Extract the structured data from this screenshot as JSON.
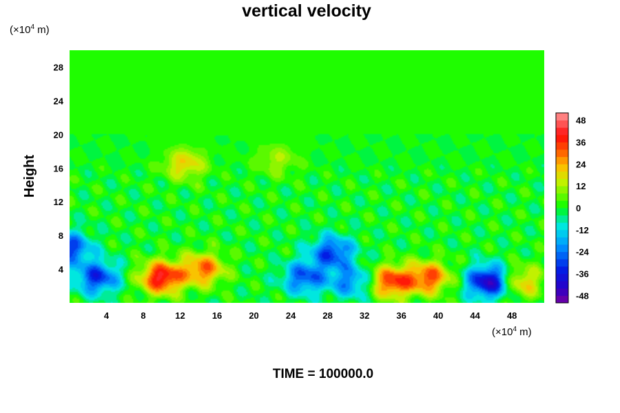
{
  "chart_data": {
    "type": "heatmap",
    "title": "vertical velocity",
    "ylabel": "Height",
    "xlabel": "",
    "x_unit": {
      "prefix": "(×10",
      "exp": "4",
      "suffix": " m)"
    },
    "y_unit": {
      "prefix": "(×10",
      "exp": "4",
      "suffix": " m)"
    },
    "xlim": [
      0,
      51.5
    ],
    "ylim": [
      0,
      30
    ],
    "x_ticks": [
      "4",
      "8",
      "12",
      "16",
      "20",
      "24",
      "28",
      "32",
      "36",
      "40",
      "44",
      "48"
    ],
    "y_ticks": [
      "4",
      "8",
      "12",
      "16",
      "20",
      "24",
      "28"
    ],
    "colorbar": {
      "range": [
        -52,
        52
      ],
      "ticks": [
        "48",
        "36",
        "24",
        "12",
        "0",
        "-12",
        "-24",
        "-36",
        "-48"
      ],
      "levels": 26
    },
    "features": [
      {
        "x": 3,
        "y": 3,
        "value": -32,
        "note": "downdraft"
      },
      {
        "x": 10,
        "y": 3,
        "value": 42,
        "note": "updraft"
      },
      {
        "x": 14.5,
        "y": 4,
        "value": 30,
        "note": "updraft"
      },
      {
        "x": 25.5,
        "y": 3,
        "value": -28,
        "note": "downdraft"
      },
      {
        "x": 28.5,
        "y": 6,
        "value": -30,
        "note": "downdraft"
      },
      {
        "x": 30.5,
        "y": 2.5,
        "value": -22,
        "note": "downdraft"
      },
      {
        "x": 35,
        "y": 2.5,
        "value": 36,
        "note": "updraft"
      },
      {
        "x": 39,
        "y": 3,
        "value": 32,
        "note": "updraft"
      },
      {
        "x": 45.5,
        "y": 2.5,
        "value": -44,
        "note": "downdraft"
      },
      {
        "x": 49,
        "y": 2.5,
        "value": 22,
        "note": "updraft"
      },
      {
        "x": 0,
        "y": 6.5,
        "value": -30,
        "note": "downdraft"
      },
      {
        "x": 12.5,
        "y": 16.5,
        "value": 20,
        "note": "updraft"
      },
      {
        "x": 22.5,
        "y": 17,
        "value": 12,
        "note": "updraft"
      }
    ],
    "grid": false,
    "legend": "right colorbar"
  },
  "footer": "TIME = 100000.0"
}
